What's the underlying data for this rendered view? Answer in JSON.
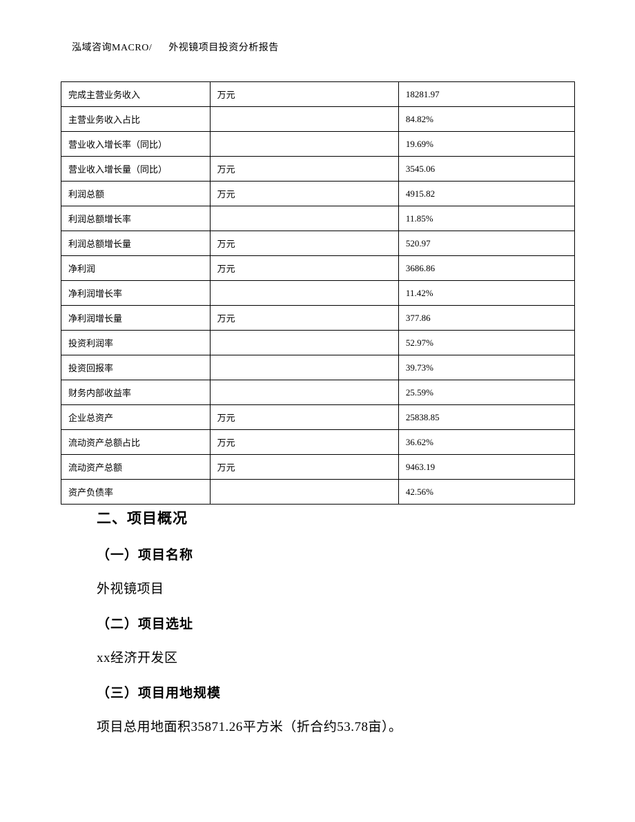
{
  "header": {
    "company": "泓域咨询",
    "macro": "MACRO/",
    "title": "外视镜项目投资分析报告"
  },
  "table": {
    "rows": [
      {
        "label": "完成主营业务收入",
        "unit": "万元",
        "value": "18281.97"
      },
      {
        "label": "主营业务收入占比",
        "unit": "",
        "value": "84.82%"
      },
      {
        "label": "营业收入增长率（同比）",
        "unit": "",
        "value": "19.69%"
      },
      {
        "label": "营业收入增长量（同比）",
        "unit": "万元",
        "value": "3545.06"
      },
      {
        "label": "利润总额",
        "unit": "万元",
        "value": "4915.82"
      },
      {
        "label": "利润总额增长率",
        "unit": "",
        "value": "11.85%"
      },
      {
        "label": "利润总额增长量",
        "unit": "万元",
        "value": "520.97"
      },
      {
        "label": "净利润",
        "unit": "万元",
        "value": "3686.86"
      },
      {
        "label": "净利润增长率",
        "unit": "",
        "value": "11.42%"
      },
      {
        "label": "净利润增长量",
        "unit": "万元",
        "value": "377.86"
      },
      {
        "label": "投资利润率",
        "unit": "",
        "value": "52.97%"
      },
      {
        "label": "投资回报率",
        "unit": "",
        "value": "39.73%"
      },
      {
        "label": "财务内部收益率",
        "unit": "",
        "value": "25.59%"
      },
      {
        "label": "企业总资产",
        "unit": "万元",
        "value": "25838.85"
      },
      {
        "label": "流动资产总额占比",
        "unit": "万元",
        "value": "36.62%"
      },
      {
        "label": "流动资产总额",
        "unit": "万元",
        "value": "9463.19"
      },
      {
        "label": "资产负债率",
        "unit": "",
        "value": "42.56%"
      }
    ]
  },
  "sections": {
    "h1": "二、项目概况",
    "s1_title": "（一）项目名称",
    "s1_body": "外视镜项目",
    "s2_title": "（二）项目选址",
    "s2_body": "xx经济开发区",
    "s3_title": "（三）项目用地规模",
    "s3_body": "项目总用地面积35871.26平方米（折合约53.78亩）。"
  }
}
